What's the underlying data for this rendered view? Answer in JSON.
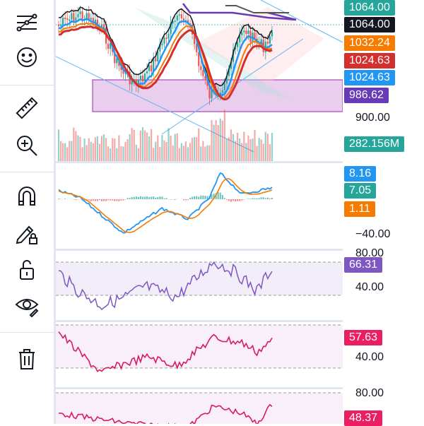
{
  "toolbar": {
    "tools": [
      "lines-icon",
      "smiley-icon",
      "ruler-icon",
      "zoom-in-icon",
      "magnet-icon",
      "pencil-lock-icon",
      "unlock-icon",
      "eye-icon",
      "trash-icon"
    ]
  },
  "price_axis": {
    "ticks": [
      "900.00"
    ],
    "badges": [
      {
        "text": "1064.00",
        "color": "#26a69a",
        "text_color": "#ffffff"
      },
      {
        "text": "1064.00",
        "color": "#131722",
        "text_color": "#ffffff"
      },
      {
        "text": "1032.24",
        "color": "#f57c00",
        "text_color": "#ffffff"
      },
      {
        "text": "1024.63",
        "color": "#d32f2f",
        "text_color": "#ffffff"
      },
      {
        "text": "1024.63",
        "color": "#2196f3",
        "text_color": "#ffffff"
      },
      {
        "text": "986.62",
        "color": "#673ab7",
        "text_color": "#ffffff"
      },
      {
        "text": "282.156M",
        "color": "#26a69a",
        "text_color": "#ffffff"
      }
    ]
  },
  "macd_axis": {
    "ticks": [
      "−40.00"
    ],
    "badges": [
      {
        "text": "8.16",
        "color": "#2196f3",
        "text_color": "#ffffff"
      },
      {
        "text": "7.05",
        "color": "#26a69a",
        "text_color": "#ffffff"
      },
      {
        "text": "1.11",
        "color": "#f57c00",
        "text_color": "#ffffff"
      }
    ]
  },
  "rsi_axis": {
    "ticks": [
      "80.00",
      "40.00"
    ],
    "badges": [
      {
        "text": "66.31",
        "color": "#7e57c2",
        "text_color": "#ffffff"
      }
    ]
  },
  "osc2_axis": {
    "ticks": [
      "40.00"
    ],
    "badges": [
      {
        "text": "57.63",
        "color": "#e91e63",
        "text_color": "#ffffff"
      }
    ]
  },
  "osc3_axis": {
    "ticks": [
      "80.00"
    ],
    "badges": [
      {
        "text": "48.37",
        "color": "#e91e63",
        "text_color": "#ffffff"
      }
    ]
  },
  "colors": {
    "up": "#26a69a",
    "down": "#ef5350",
    "rsi": "#7e57c2",
    "osc": "#d81b60",
    "ma_fast": "#2196f3",
    "ma_slow": "#f57c00",
    "ma_red": "#d32f2f",
    "ma_black": "#131722",
    "ma_purple": "#673ab7"
  }
}
